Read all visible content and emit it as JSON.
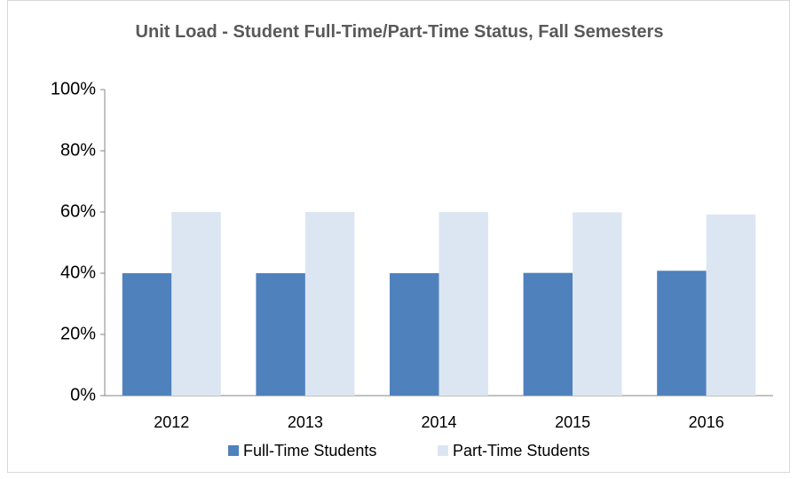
{
  "chart_data": {
    "type": "bar",
    "title": "Unit Load - Student Full-Time/Part-Time Status, Fall Semesters",
    "categories": [
      "2012",
      "2013",
      "2014",
      "2015",
      "2016"
    ],
    "series": [
      {
        "name": "Full-Time Students",
        "color": "#4f81bd",
        "values": [
          40,
          40,
          40,
          40.1,
          40.8
        ]
      },
      {
        "name": "Part-Time Students",
        "color": "#dce6f2",
        "values": [
          60,
          60,
          60,
          59.9,
          59.2
        ]
      }
    ],
    "ylim": [
      0,
      100
    ],
    "yticks": [
      {
        "value": 0,
        "label": "0%"
      },
      {
        "value": 20,
        "label": "20%"
      },
      {
        "value": 40,
        "label": "40%"
      },
      {
        "value": 60,
        "label": "60%"
      },
      {
        "value": 80,
        "label": "80%"
      },
      {
        "value": 100,
        "label": "100%"
      }
    ],
    "grid": false,
    "legend": "bottom"
  }
}
